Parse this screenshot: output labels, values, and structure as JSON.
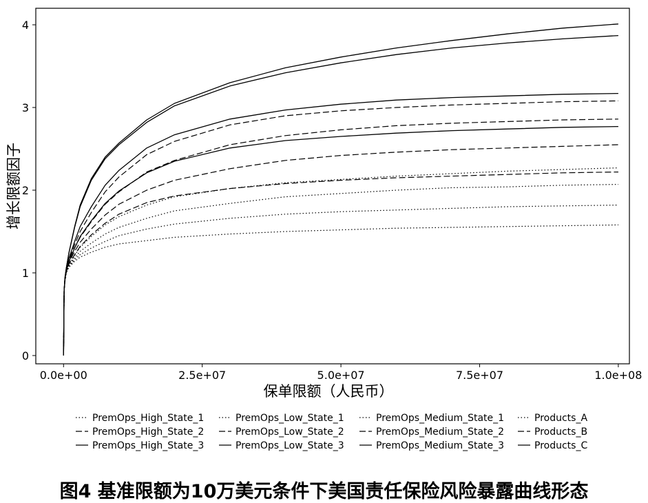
{
  "chart_data": {
    "type": "line",
    "xlabel": "保单限额（人民币）",
    "ylabel": "增长限额因子",
    "xlim": [
      -5000000,
      102000000
    ],
    "ylim": [
      -0.1,
      4.2
    ],
    "x_ticks": [
      0,
      25000000,
      50000000,
      75000000,
      100000000
    ],
    "x_tick_labels": [
      "0.0e+00",
      "2.5e+07",
      "5.0e+07",
      "7.5e+07",
      "1.0e+08"
    ],
    "y_ticks": [
      0,
      1,
      2,
      3,
      4
    ],
    "y_tick_labels": [
      "0",
      "1",
      "2",
      "3",
      "4"
    ],
    "x": [
      0,
      100000,
      250000,
      500000,
      1000000,
      2000000,
      3000000,
      5000000,
      7500000,
      10000000,
      15000000,
      20000000,
      30000000,
      40000000,
      50000000,
      60000000,
      70000000,
      80000000,
      90000000,
      100000000
    ],
    "legend_position": "bottom",
    "series": [
      {
        "name": "PremOps_High_State_1",
        "line_style": "dotted",
        "values": [
          0.0,
          0.78,
          0.9,
          1.0,
          1.09,
          1.18,
          1.26,
          1.36,
          1.47,
          1.55,
          1.66,
          1.75,
          1.84,
          1.92,
          1.96,
          2.0,
          2.03,
          2.04,
          2.06,
          2.07
        ]
      },
      {
        "name": "PremOps_Low_State_1",
        "line_style": "dotted",
        "values": [
          0.0,
          0.78,
          0.9,
          1.0,
          1.07,
          1.14,
          1.19,
          1.25,
          1.31,
          1.35,
          1.39,
          1.43,
          1.47,
          1.5,
          1.52,
          1.54,
          1.55,
          1.56,
          1.57,
          1.58
        ]
      },
      {
        "name": "PremOps_Medium_State_1",
        "line_style": "dotted",
        "values": [
          0.0,
          0.78,
          0.9,
          1.0,
          1.08,
          1.16,
          1.22,
          1.3,
          1.38,
          1.45,
          1.53,
          1.59,
          1.66,
          1.71,
          1.74,
          1.76,
          1.78,
          1.8,
          1.81,
          1.82
        ]
      },
      {
        "name": "Products_A",
        "line_style": "dotted",
        "values": [
          0.0,
          0.78,
          0.9,
          1.0,
          1.1,
          1.21,
          1.31,
          1.44,
          1.58,
          1.68,
          1.82,
          1.92,
          2.02,
          2.09,
          2.13,
          2.17,
          2.2,
          2.23,
          2.25,
          2.27
        ]
      },
      {
        "name": "PremOps_High_State_2",
        "line_style": "dashed",
        "values": [
          0.0,
          0.78,
          0.92,
          1.02,
          1.14,
          1.3,
          1.43,
          1.62,
          1.83,
          1.98,
          2.22,
          2.36,
          2.55,
          2.66,
          2.73,
          2.78,
          2.81,
          2.83,
          2.85,
          2.86
        ]
      },
      {
        "name": "PremOps_Low_State_2",
        "line_style": "dashed",
        "values": [
          0.0,
          0.78,
          0.91,
          1.01,
          1.11,
          1.22,
          1.32,
          1.46,
          1.6,
          1.71,
          1.85,
          1.93,
          2.02,
          2.08,
          2.12,
          2.15,
          2.17,
          2.19,
          2.21,
          2.22
        ]
      },
      {
        "name": "PremOps_Medium_State_2",
        "line_style": "dashed",
        "values": [
          0.0,
          0.78,
          0.92,
          1.02,
          1.13,
          1.26,
          1.37,
          1.53,
          1.7,
          1.83,
          2.0,
          2.12,
          2.26,
          2.36,
          2.42,
          2.46,
          2.49,
          2.51,
          2.53,
          2.55
        ]
      },
      {
        "name": "Products_B",
        "line_style": "dashed",
        "values": [
          0.0,
          0.78,
          0.93,
          1.04,
          1.16,
          1.34,
          1.5,
          1.73,
          1.98,
          2.16,
          2.43,
          2.59,
          2.79,
          2.9,
          2.96,
          3.0,
          3.03,
          3.05,
          3.07,
          3.08
        ]
      },
      {
        "name": "PremOps_High_State_3",
        "line_style": "solid",
        "values": [
          0.0,
          0.78,
          0.94,
          1.06,
          1.25,
          1.55,
          1.8,
          2.12,
          2.38,
          2.55,
          2.82,
          3.02,
          3.26,
          3.42,
          3.54,
          3.64,
          3.72,
          3.78,
          3.83,
          3.87
        ]
      },
      {
        "name": "PremOps_Low_State_3",
        "line_style": "solid",
        "values": [
          0.0,
          0.78,
          0.92,
          1.02,
          1.14,
          1.3,
          1.44,
          1.63,
          1.84,
          1.99,
          2.21,
          2.35,
          2.51,
          2.6,
          2.65,
          2.69,
          2.72,
          2.74,
          2.76,
          2.77
        ]
      },
      {
        "name": "PremOps_Medium_State_3",
        "line_style": "solid",
        "values": [
          0.0,
          0.78,
          0.93,
          1.05,
          1.18,
          1.38,
          1.56,
          1.8,
          2.06,
          2.24,
          2.51,
          2.67,
          2.86,
          2.97,
          3.04,
          3.09,
          3.12,
          3.14,
          3.16,
          3.17
        ]
      },
      {
        "name": "Products_C",
        "line_style": "solid",
        "values": [
          0.0,
          0.78,
          0.94,
          1.06,
          1.25,
          1.56,
          1.82,
          2.14,
          2.4,
          2.57,
          2.85,
          3.05,
          3.3,
          3.48,
          3.61,
          3.72,
          3.81,
          3.89,
          3.96,
          4.01
        ]
      }
    ]
  },
  "caption": "图4  基准限额为10万美元条件下美国责任保险风险暴露曲线形态"
}
